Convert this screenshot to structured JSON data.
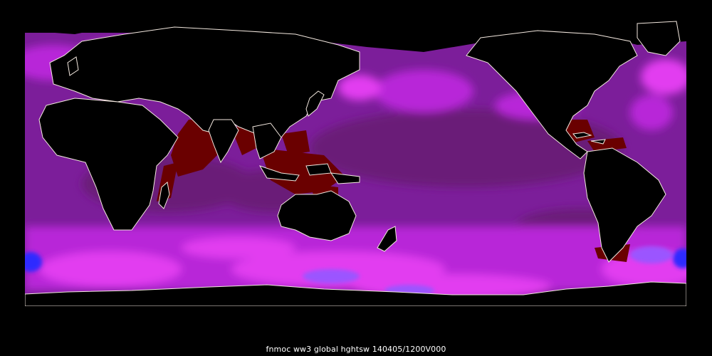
{
  "caption": "fnmoc ww3 global hghtsw 140405/1200V000",
  "colors": {
    "background": "#000000",
    "land": "#000000",
    "coastline": "#f3e8df",
    "wave_low": "#6a0000",
    "wave_mid_low": "#6b1a78",
    "wave_mid": "#8a14a8",
    "wave_mid_high": "#b826d8",
    "wave_high": "#e23cf0",
    "wave_very_high": "#9b55ff",
    "wave_extreme": "#2f2aff"
  }
}
